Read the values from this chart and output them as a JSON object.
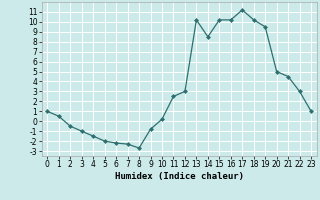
{
  "x": [
    0,
    1,
    2,
    3,
    4,
    5,
    6,
    7,
    8,
    9,
    10,
    11,
    12,
    13,
    14,
    15,
    16,
    17,
    18,
    19,
    20,
    21,
    22,
    23
  ],
  "y": [
    1,
    0.5,
    -0.5,
    -1,
    -1.5,
    -2,
    -2.2,
    -2.3,
    -2.7,
    -0.8,
    0.2,
    2.5,
    3,
    10.2,
    8.5,
    10.2,
    10.2,
    11.2,
    10.2,
    9.5,
    5,
    4.5,
    3,
    1
  ],
  "xlabel": "Humidex (Indice chaleur)",
  "ylim": [
    -3.5,
    12
  ],
  "xlim": [
    -0.5,
    23.5
  ],
  "yticks": [
    -3,
    -2,
    -1,
    0,
    1,
    2,
    3,
    4,
    5,
    6,
    7,
    8,
    9,
    10,
    11
  ],
  "xticks": [
    0,
    1,
    2,
    3,
    4,
    5,
    6,
    7,
    8,
    9,
    10,
    11,
    12,
    13,
    14,
    15,
    16,
    17,
    18,
    19,
    20,
    21,
    22,
    23
  ],
  "line_color": "#2e7070",
  "marker": "D",
  "marker_size": 2.0,
  "bg_color": "#cceaea",
  "grid_color": "#ffffff",
  "label_fontsize": 6.5,
  "tick_fontsize": 5.5
}
